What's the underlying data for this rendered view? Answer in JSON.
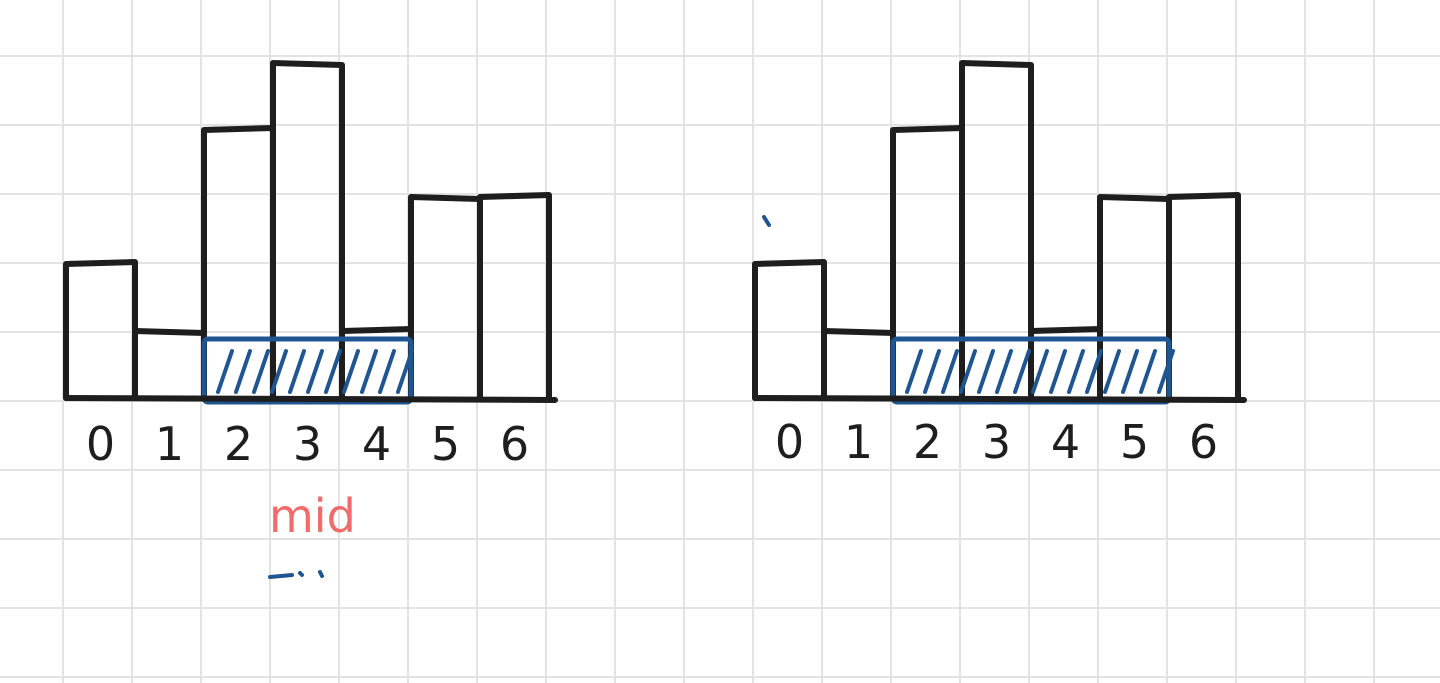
{
  "colors": {
    "grid": "#e3e3e3",
    "ink": "#1e1e1e",
    "highlight": "#1f5591",
    "annotation": "#f26b6b"
  },
  "chart_data": [
    {
      "type": "bar",
      "categories": [
        "0",
        "1",
        "2",
        "3",
        "4",
        "5",
        "6"
      ],
      "values": [
        2,
        1,
        4,
        5,
        1,
        3,
        3
      ],
      "highlight_range": [
        2,
        4
      ],
      "highlight_height": 1,
      "annotations": [
        {
          "text": "mid",
          "color": "#f26b6b",
          "under": "3"
        }
      ]
    },
    {
      "type": "bar",
      "categories": [
        "0",
        "1",
        "2",
        "3",
        "4",
        "5",
        "6"
      ],
      "values": [
        2,
        1,
        4,
        5,
        1,
        3,
        3
      ],
      "highlight_range": [
        2,
        5
      ],
      "highlight_height": 1,
      "annotations": []
    }
  ]
}
